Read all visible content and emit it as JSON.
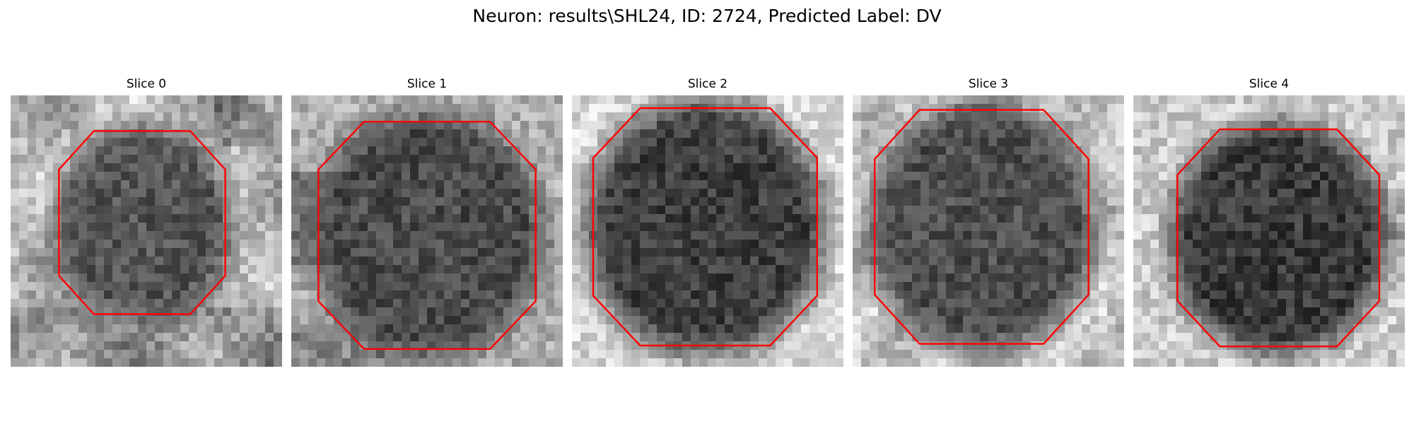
{
  "figure": {
    "title": "Neuron: results\\SHL24, ID: 2724, Predicted Label: DV"
  },
  "colors": {
    "contour": "#ff0000",
    "background": "#ffffff"
  },
  "panels": [
    {
      "title": "Slice 0"
    },
    {
      "title": "Slice 1"
    },
    {
      "title": "Slice 2"
    },
    {
      "title": "Slice 3"
    },
    {
      "title": "Slice 4"
    }
  ]
}
